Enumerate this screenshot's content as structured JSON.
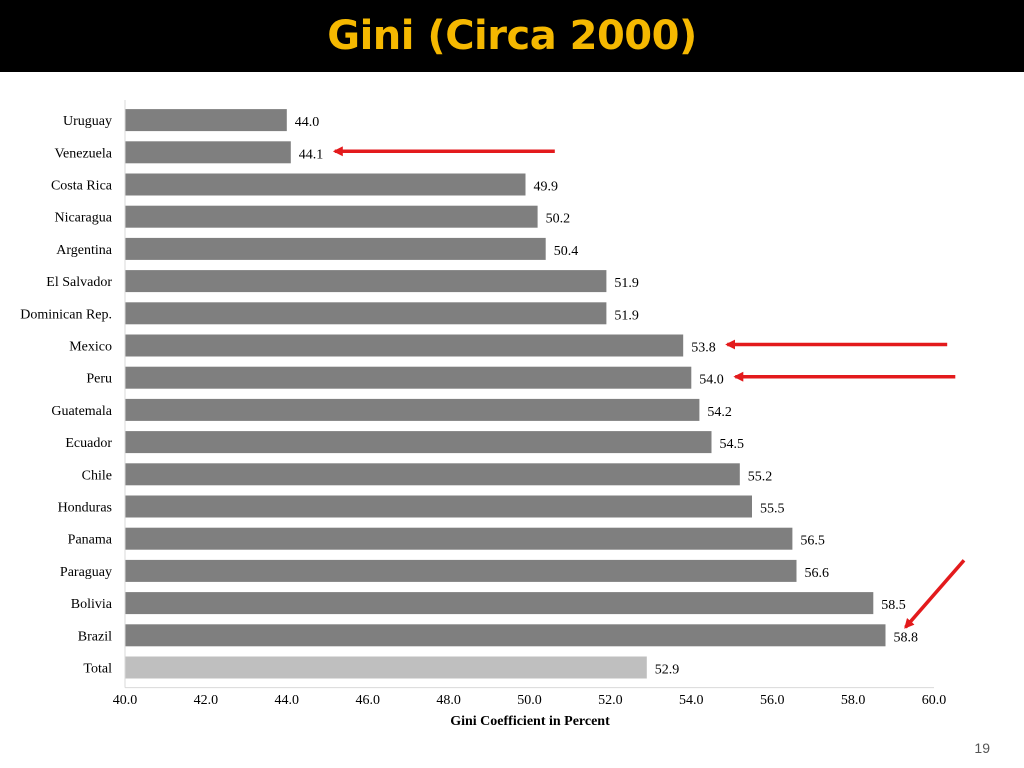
{
  "slide": {
    "title": "Gini (Circa 2000)",
    "page_number": "19"
  },
  "colors": {
    "title_bar": "#000000",
    "title_text": "#f5b800",
    "bar": "#7f7f7f",
    "total_bar": "#bfbfbf",
    "arrow": "#e31a1c"
  },
  "chart_data": {
    "type": "bar",
    "orientation": "horizontal",
    "categories": [
      "Uruguay",
      "Venezuela",
      "Costa Rica",
      "Nicaragua",
      "Argentina",
      "El Salvador",
      "Dominican Rep.",
      "Mexico",
      "Peru",
      "Guatemala",
      "Ecuador",
      "Chile",
      "Honduras",
      "Panama",
      "Paraguay",
      "Bolivia",
      "Brazil",
      "Total"
    ],
    "values": [
      44.0,
      44.1,
      49.9,
      50.2,
      50.4,
      51.9,
      51.9,
      53.8,
      54.0,
      54.2,
      54.5,
      55.2,
      55.5,
      56.5,
      56.6,
      58.5,
      58.8,
      52.9
    ],
    "value_labels": [
      "44.0",
      "44.1",
      "49.9",
      "50.2",
      "50.4",
      "51.9",
      "51.9",
      "53.8",
      "54.0",
      "54.2",
      "54.5",
      "55.2",
      "55.5",
      "56.5",
      "56.6",
      "58.5",
      "58.8",
      "52.9"
    ],
    "highlighted_category": "Total",
    "xlabel": "Gini Coefficient in Percent",
    "ylabel": "",
    "xlim": [
      40.0,
      60.0
    ],
    "x_ticks": [
      "40.0",
      "42.0",
      "44.0",
      "46.0",
      "48.0",
      "50.0",
      "52.0",
      "54.0",
      "56.0",
      "58.0",
      "60.0"
    ],
    "grid": false,
    "legend": "none",
    "annotations": [
      {
        "type": "arrow",
        "points_to": "Venezuela",
        "direction": "left"
      },
      {
        "type": "arrow",
        "points_to": "Mexico",
        "direction": "left"
      },
      {
        "type": "arrow",
        "points_to": "Peru",
        "direction": "left"
      },
      {
        "type": "arrow",
        "points_to": "Brazil",
        "direction": "down-left"
      }
    ]
  }
}
